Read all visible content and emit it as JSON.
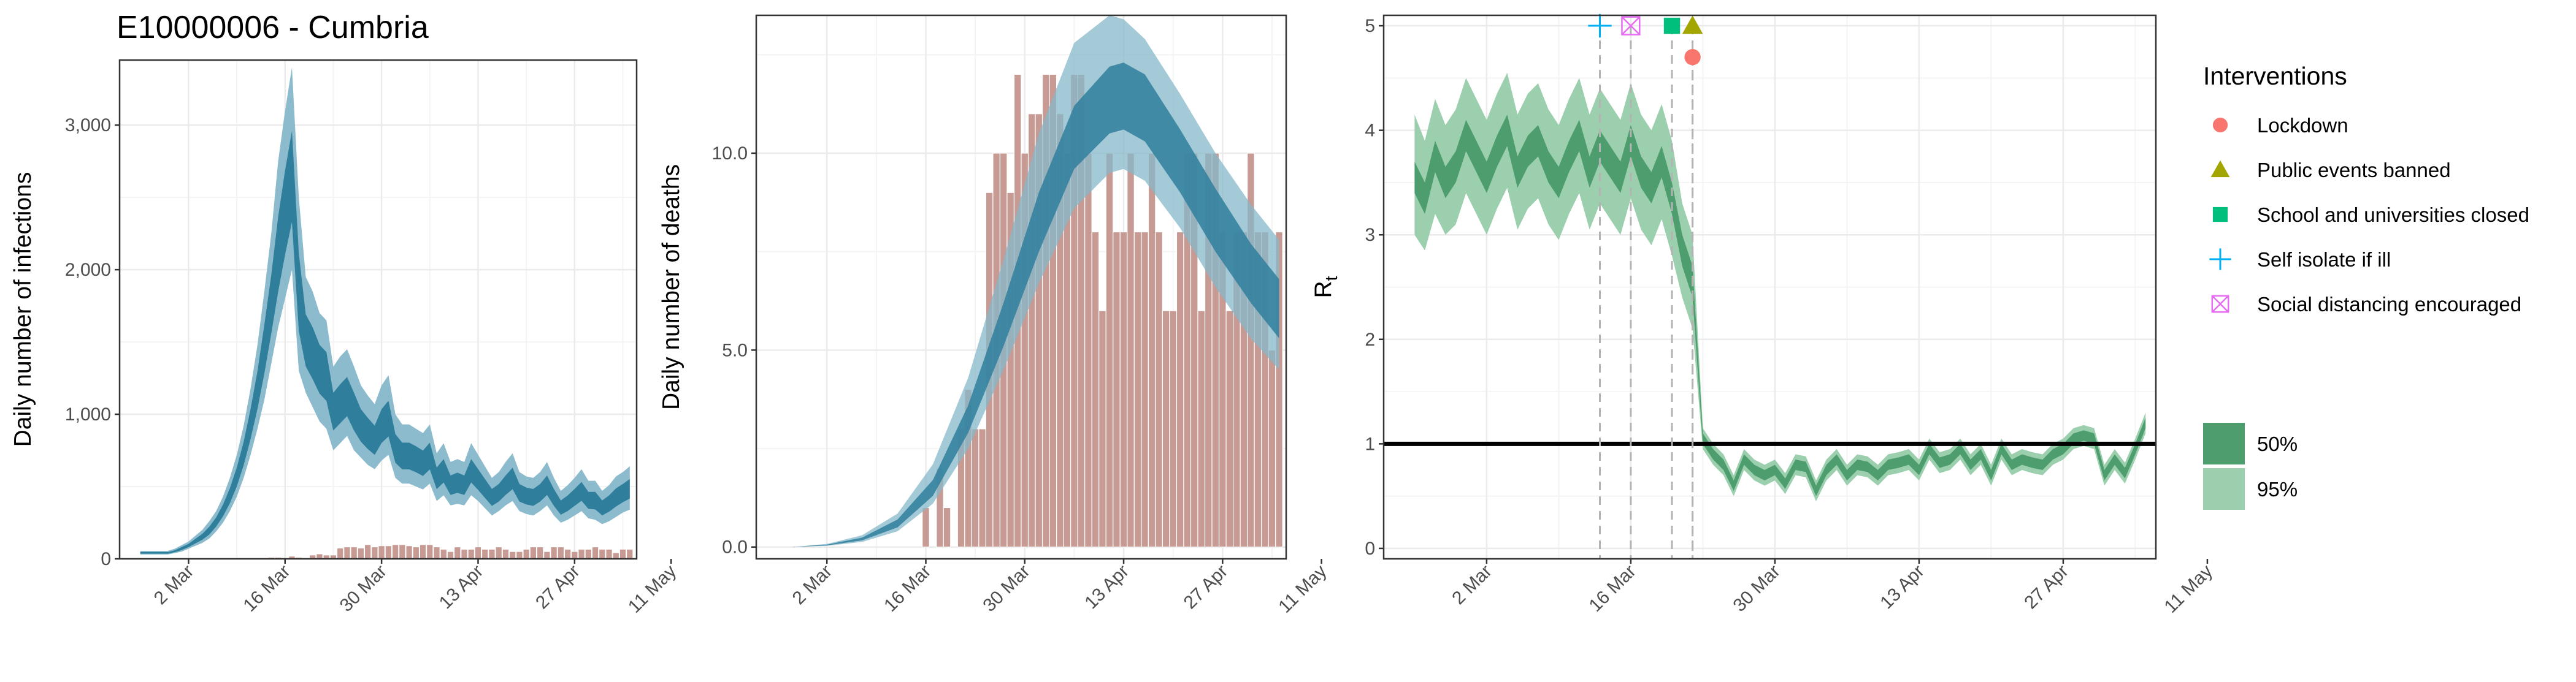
{
  "colors": {
    "band95": "#85b7ca",
    "band50": "#2f7f9c",
    "bars": "#c79b94",
    "bars_edge": "#ffffff",
    "rt95": "#9ccfad",
    "rt50": "#4e9d6e",
    "grid_major": "#ebebeb",
    "grid_minor": "#f4f4f4",
    "lockdown": "#f8766d",
    "public_events_banned": "#a3a500",
    "school_closed": "#00bf7d",
    "self_isolate": "#00b0f6",
    "social_distancing": "#e76bf3"
  },
  "figure_title": "E10000006 - Cumbria",
  "legend": {
    "title": "Interventions",
    "items": [
      {
        "label": "Lockdown",
        "shape": "circle",
        "color_key": "lockdown"
      },
      {
        "label": "Public events banned",
        "shape": "triangle",
        "color_key": "public_events_banned"
      },
      {
        "label": "School and universities closed",
        "shape": "square",
        "color_key": "school_closed"
      },
      {
        "label": "Self isolate if ill",
        "shape": "plus",
        "color_key": "self_isolate"
      },
      {
        "label": "Social distancing encouraged",
        "shape": "boxx",
        "color_key": "social_distancing"
      }
    ],
    "ci_items": [
      {
        "label": "50%",
        "color_key": "rt50"
      },
      {
        "label": "95%",
        "color_key": "rt95"
      }
    ]
  },
  "chart_data": [
    {
      "type": "area",
      "title": "E10000006 - Cumbria",
      "ylabel": "Daily number of infections",
      "xlabel": "",
      "x_tick_labels": [
        "2 Mar",
        "16 Mar",
        "30 Mar",
        "13 Apr",
        "27 Apr",
        "11 May"
      ],
      "y_tick_labels": [
        "0",
        "1,000",
        "2,000",
        "3,000"
      ],
      "y_ticks": [
        0,
        1000,
        2000,
        3000
      ],
      "ylim": [
        0,
        3450
      ],
      "x_range_days": [
        0,
        75
      ],
      "x_ticks_days": [
        10,
        24,
        38,
        52,
        66,
        80
      ],
      "grid": true,
      "days": [
        3,
        4,
        5,
        6,
        7,
        8,
        9,
        10,
        11,
        12,
        13,
        14,
        15,
        16,
        17,
        18,
        19,
        20,
        21,
        22,
        23,
        24,
        25,
        26,
        27,
        28,
        29,
        30,
        31,
        32,
        33,
        34,
        35,
        36,
        37,
        38,
        39,
        40,
        41,
        42,
        43,
        44,
        45,
        46,
        47,
        48,
        49,
        50,
        51,
        52,
        53,
        54,
        55,
        56,
        57,
        58,
        59,
        60,
        61,
        62,
        63,
        64,
        65,
        66,
        67,
        68,
        69,
        70,
        71,
        72,
        73,
        74
      ],
      "median": [
        40,
        40,
        40,
        40,
        40,
        50,
        70,
        90,
        120,
        150,
        190,
        250,
        330,
        430,
        560,
        720,
        920,
        1150,
        1430,
        1730,
        2050,
        2350,
        2600,
        1800,
        1480,
        1400,
        1300,
        1250,
        1000,
        1050,
        1100,
        1000,
        900,
        850,
        800,
        900,
        950,
        750,
        700,
        700,
        680,
        650,
        700,
        550,
        600,
        500,
        520,
        500,
        600,
        540,
        480,
        420,
        450,
        500,
        550,
        450,
        430,
        420,
        450,
        500,
        420,
        350,
        380,
        420,
        460,
        400,
        400,
        350,
        380,
        420,
        450,
        480
      ],
      "lower95": [
        30,
        30,
        30,
        30,
        30,
        40,
        50,
        70,
        90,
        110,
        140,
        190,
        250,
        330,
        430,
        560,
        720,
        900,
        1100,
        1350,
        1600,
        1800,
        2000,
        1300,
        1150,
        1050,
        950,
        900,
        750,
        800,
        850,
        750,
        700,
        650,
        620,
        680,
        720,
        560,
        520,
        520,
        500,
        480,
        520,
        400,
        440,
        370,
        380,
        370,
        440,
        400,
        350,
        300,
        330,
        370,
        400,
        330,
        310,
        300,
        330,
        370,
        300,
        250,
        270,
        300,
        330,
        280,
        270,
        240,
        260,
        290,
        320,
        340
      ],
      "upper95": [
        55,
        55,
        55,
        55,
        55,
        70,
        95,
        120,
        160,
        200,
        260,
        330,
        430,
        560,
        720,
        920,
        1180,
        1480,
        1850,
        2250,
        2750,
        3100,
        3400,
        2500,
        1950,
        1850,
        1700,
        1650,
        1330,
        1400,
        1450,
        1330,
        1200,
        1130,
        1070,
        1200,
        1270,
        1000,
        930,
        930,
        900,
        870,
        930,
        730,
        800,
        670,
        690,
        670,
        800,
        720,
        640,
        560,
        600,
        670,
        730,
        600,
        570,
        560,
        600,
        670,
        560,
        470,
        510,
        560,
        620,
        540,
        540,
        470,
        510,
        570,
        600,
        640
      ],
      "deaths_days": [
        22,
        23,
        24,
        25,
        26,
        27,
        28,
        29,
        30,
        31,
        32,
        33,
        34,
        35,
        36,
        37,
        38,
        39,
        40,
        41,
        42,
        43,
        44,
        45,
        46,
        47,
        48,
        49,
        50,
        51,
        52,
        53,
        54,
        55,
        56,
        57,
        58,
        59,
        60,
        61,
        62,
        63,
        64,
        65,
        66,
        67,
        68,
        69,
        70,
        71,
        72,
        73,
        74
      ],
      "deaths": [
        1,
        1,
        0,
        2,
        1,
        0,
        3,
        4,
        3,
        3,
        9,
        10,
        10,
        9,
        12,
        10,
        11,
        11,
        12,
        12,
        11,
        10,
        12,
        12,
        10,
        8,
        6,
        10,
        8,
        8,
        10,
        8,
        8,
        10,
        8,
        6,
        6,
        8,
        10,
        10,
        6,
        10,
        10,
        8,
        6,
        8,
        8,
        10,
        8,
        8,
        5,
        8,
        8
      ]
    },
    {
      "type": "bar",
      "ylabel": "Daily number of deaths",
      "xlabel": "",
      "x_tick_labels": [
        "2 Mar",
        "16 Mar",
        "30 Mar",
        "13 Apr",
        "27 Apr",
        "11 May"
      ],
      "y_tick_labels": [
        "0.0",
        "5.0",
        "10.0"
      ],
      "y_ticks": [
        0,
        5,
        10
      ],
      "ylim": [
        -0.3,
        13.5
      ],
      "x_range_days": [
        0,
        75
      ],
      "x_ticks_days": [
        10,
        24,
        38,
        52,
        66,
        80
      ],
      "grid": true,
      "bar_days": [
        24,
        25,
        26,
        27,
        28,
        29,
        30,
        31,
        32,
        33,
        34,
        35,
        36,
        37,
        38,
        39,
        40,
        41,
        42,
        43,
        44,
        45,
        46,
        47,
        48,
        49,
        50,
        51,
        52,
        53,
        54,
        55,
        56,
        57,
        58,
        59,
        60,
        61,
        62,
        63,
        64,
        65,
        66,
        67,
        68,
        69,
        70,
        71,
        72,
        73,
        74
      ],
      "bar_values": [
        1,
        0,
        2,
        1,
        0,
        3,
        4,
        3,
        3,
        9,
        10,
        10,
        9,
        12,
        10,
        11,
        11,
        12,
        12,
        11,
        10,
        12,
        12,
        10,
        8,
        6,
        10,
        8,
        8,
        10,
        8,
        8,
        10,
        8,
        6,
        6,
        8,
        10,
        10,
        6,
        10,
        10,
        8,
        6,
        8,
        8,
        10,
        8,
        8,
        5,
        8
      ],
      "curve_days": [
        0,
        5,
        10,
        15,
        20,
        25,
        30,
        35,
        40,
        45,
        50,
        52,
        55,
        60,
        65,
        70,
        74
      ],
      "median": [
        0,
        0,
        0.05,
        0.2,
        0.6,
        1.5,
        3.2,
        5.6,
        8.2,
        10.4,
        11.4,
        11.5,
        11.2,
        9.8,
        8.3,
        6.9,
        6.0
      ],
      "lower50": [
        0,
        0,
        0.04,
        0.17,
        0.5,
        1.3,
        2.9,
        5.1,
        7.5,
        9.6,
        10.5,
        10.6,
        10.3,
        9.0,
        7.5,
        6.2,
        5.3
      ],
      "upper50": [
        0,
        0,
        0.06,
        0.24,
        0.7,
        1.7,
        3.6,
        6.2,
        9.0,
        11.2,
        12.2,
        12.3,
        12.0,
        10.6,
        9.1,
        7.7,
        6.8
      ],
      "lower95": [
        0,
        0,
        0.03,
        0.13,
        0.4,
        1.1,
        2.5,
        4.5,
        6.7,
        8.6,
        9.5,
        9.6,
        9.3,
        8.1,
        6.6,
        5.3,
        4.5
      ],
      "upper95": [
        0,
        0,
        0.08,
        0.3,
        0.85,
        2.1,
        4.3,
        7.3,
        10.5,
        12.8,
        13.5,
        13.4,
        12.9,
        11.5,
        10.0,
        8.7,
        7.8
      ]
    },
    {
      "type": "line",
      "ylabel": "R",
      "ylabel_subscript": "t",
      "xlabel": "",
      "x_tick_labels": [
        "2 Mar",
        "16 Mar",
        "30 Mar",
        "13 Apr",
        "27 Apr",
        "11 May"
      ],
      "y_tick_labels": [
        "0",
        "1",
        "2",
        "3",
        "4",
        "5"
      ],
      "y_ticks": [
        0,
        1,
        2,
        3,
        4,
        5
      ],
      "ylim": [
        -0.1,
        5.1
      ],
      "x_range_days": [
        0,
        75
      ],
      "x_ticks_days": [
        10,
        24,
        38,
        52,
        66,
        80
      ],
      "reference_line_y": 1,
      "grid": true,
      "days": [
        3,
        4,
        5,
        6,
        7,
        8,
        9,
        10,
        11,
        12,
        13,
        14,
        15,
        16,
        17,
        18,
        19,
        20,
        21,
        22,
        23,
        24,
        25,
        26,
        27,
        28,
        29,
        30,
        31,
        32,
        33,
        34,
        35,
        36,
        37,
        38,
        39,
        40,
        41,
        42,
        43,
        44,
        45,
        46,
        47,
        48,
        49,
        50,
        51,
        52,
        53,
        54,
        55,
        56,
        57,
        58,
        59,
        60,
        61,
        62,
        63,
        64,
        65,
        66,
        67,
        68,
        69,
        70,
        71,
        72,
        73,
        74
      ],
      "median": [
        3.55,
        3.35,
        3.75,
        3.5,
        3.65,
        3.95,
        3.75,
        3.55,
        3.8,
        4.0,
        3.6,
        3.8,
        3.9,
        3.65,
        3.5,
        3.75,
        3.95,
        3.6,
        3.85,
        3.7,
        3.55,
        3.9,
        3.6,
        3.45,
        3.7,
        3.35,
        2.85,
        2.55,
        1.05,
        0.9,
        0.8,
        0.6,
        0.85,
        0.75,
        0.7,
        0.75,
        0.62,
        0.8,
        0.78,
        0.55,
        0.75,
        0.85,
        0.7,
        0.8,
        0.78,
        0.7,
        0.8,
        0.82,
        0.85,
        0.75,
        0.95,
        0.82,
        0.85,
        0.95,
        0.8,
        0.9,
        0.7,
        0.95,
        0.8,
        0.85,
        0.82,
        0.8,
        0.9,
        0.95,
        1.05,
        1.08,
        1.05,
        0.7,
        0.85,
        0.72,
        0.95,
        1.2
      ],
      "lower50": [
        3.4,
        3.2,
        3.6,
        3.35,
        3.5,
        3.8,
        3.6,
        3.4,
        3.65,
        3.85,
        3.45,
        3.65,
        3.75,
        3.5,
        3.35,
        3.6,
        3.8,
        3.45,
        3.7,
        3.55,
        3.4,
        3.75,
        3.45,
        3.3,
        3.55,
        3.2,
        2.7,
        2.4,
        1.0,
        0.85,
        0.75,
        0.55,
        0.8,
        0.7,
        0.65,
        0.7,
        0.57,
        0.75,
        0.73,
        0.5,
        0.7,
        0.8,
        0.65,
        0.75,
        0.73,
        0.65,
        0.75,
        0.77,
        0.8,
        0.7,
        0.9,
        0.77,
        0.8,
        0.9,
        0.75,
        0.85,
        0.65,
        0.9,
        0.75,
        0.8,
        0.77,
        0.75,
        0.85,
        0.9,
        1.0,
        1.03,
        1.0,
        0.65,
        0.8,
        0.67,
        0.9,
        1.15
      ],
      "upper50": [
        3.7,
        3.5,
        3.9,
        3.65,
        3.8,
        4.1,
        3.9,
        3.7,
        3.95,
        4.15,
        3.75,
        3.95,
        4.05,
        3.8,
        3.65,
        3.9,
        4.1,
        3.75,
        4.0,
        3.85,
        3.7,
        4.05,
        3.75,
        3.6,
        3.85,
        3.5,
        3.0,
        2.7,
        1.1,
        0.95,
        0.85,
        0.65,
        0.9,
        0.8,
        0.75,
        0.8,
        0.67,
        0.85,
        0.83,
        0.6,
        0.8,
        0.9,
        0.75,
        0.85,
        0.83,
        0.75,
        0.85,
        0.87,
        0.9,
        0.8,
        1.0,
        0.87,
        0.9,
        1.0,
        0.85,
        0.95,
        0.75,
        1.0,
        0.85,
        0.9,
        0.87,
        0.85,
        0.95,
        1.0,
        1.1,
        1.13,
        1.1,
        0.75,
        0.9,
        0.77,
        1.0,
        1.25
      ],
      "lower95": [
        3.0,
        2.85,
        3.2,
        3.0,
        3.1,
        3.4,
        3.2,
        3.0,
        3.25,
        3.45,
        3.05,
        3.25,
        3.35,
        3.1,
        2.95,
        3.2,
        3.4,
        3.05,
        3.3,
        3.15,
        3.0,
        3.35,
        3.05,
        2.9,
        3.15,
        2.8,
        2.4,
        2.1,
        0.95,
        0.8,
        0.7,
        0.5,
        0.75,
        0.65,
        0.6,
        0.65,
        0.52,
        0.7,
        0.68,
        0.45,
        0.65,
        0.75,
        0.6,
        0.7,
        0.68,
        0.6,
        0.7,
        0.72,
        0.75,
        0.65,
        0.85,
        0.72,
        0.75,
        0.85,
        0.7,
        0.8,
        0.6,
        0.85,
        0.7,
        0.75,
        0.72,
        0.7,
        0.8,
        0.85,
        0.95,
        0.98,
        0.95,
        0.6,
        0.75,
        0.62,
        0.85,
        1.1
      ],
      "upper95": [
        4.15,
        3.9,
        4.3,
        4.05,
        4.2,
        4.5,
        4.3,
        4.1,
        4.35,
        4.55,
        4.15,
        4.35,
        4.45,
        4.2,
        4.05,
        4.3,
        4.5,
        4.15,
        4.4,
        4.25,
        4.1,
        4.45,
        4.15,
        4.0,
        4.25,
        3.9,
        3.3,
        3.0,
        1.15,
        1.0,
        0.9,
        0.7,
        0.95,
        0.85,
        0.8,
        0.85,
        0.72,
        0.9,
        0.88,
        0.65,
        0.85,
        0.95,
        0.8,
        0.9,
        0.88,
        0.8,
        0.9,
        0.92,
        0.95,
        0.85,
        1.05,
        0.92,
        0.95,
        1.05,
        0.9,
        1.0,
        0.8,
        1.05,
        0.9,
        0.95,
        0.92,
        0.9,
        1.0,
        1.05,
        1.15,
        1.18,
        1.15,
        0.8,
        0.95,
        0.82,
        1.05,
        1.3
      ],
      "interventions": [
        {
          "name": "Self isolate if ill",
          "day": 21,
          "y": 5.0,
          "shape": "plus",
          "color_key": "self_isolate"
        },
        {
          "name": "Social distancing encouraged",
          "day": 24,
          "y": 5.0,
          "shape": "boxx",
          "color_key": "social_distancing"
        },
        {
          "name": "School and universities closed",
          "day": 28,
          "y": 5.0,
          "shape": "square",
          "color_key": "school_closed"
        },
        {
          "name": "Public events banned",
          "day": 30,
          "y": 5.0,
          "shape": "triangle",
          "color_key": "public_events_banned"
        },
        {
          "name": "Lockdown",
          "day": 30,
          "y": 4.7,
          "shape": "circle",
          "color_key": "lockdown"
        }
      ]
    }
  ]
}
